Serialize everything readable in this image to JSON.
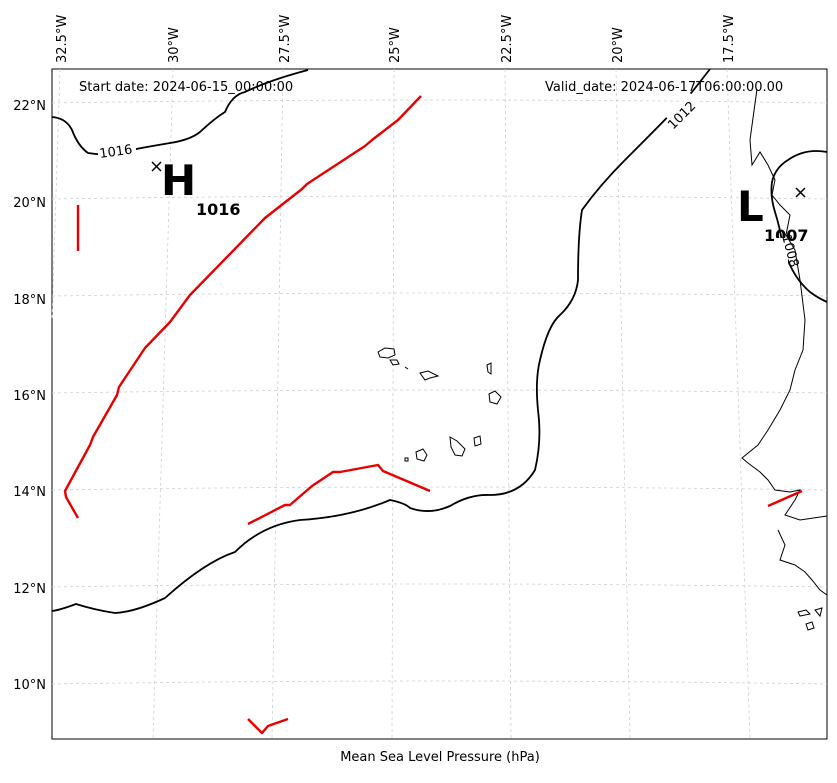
{
  "header": {
    "start_date": "Start date: 2024-06-15_00:00:00",
    "valid_date": "Valid_date: 2024-06-17T06:00:00.00"
  },
  "footer": {
    "caption": "Mean Sea Level Pressure (hPa)"
  },
  "axes": {
    "lon_ticks": [
      "32.5°W",
      "30°W",
      "27.5°W",
      "25°W",
      "22.5°W",
      "20°W",
      "17.5°W"
    ],
    "lat_ticks": [
      "22°N",
      "20°N",
      "18°N",
      "16°N",
      "14°N",
      "12°N",
      "10°N"
    ],
    "gridlines": true
  },
  "pressure_centers": [
    {
      "type": "H",
      "value": "1016"
    },
    {
      "type": "L",
      "value": "1007"
    }
  ],
  "isobar_labels": [
    "1016",
    "1012",
    "1008"
  ],
  "colors": {
    "isobar": "#000000",
    "front": "#e60000",
    "grid": "#cccccc",
    "coast": "#000000"
  }
}
